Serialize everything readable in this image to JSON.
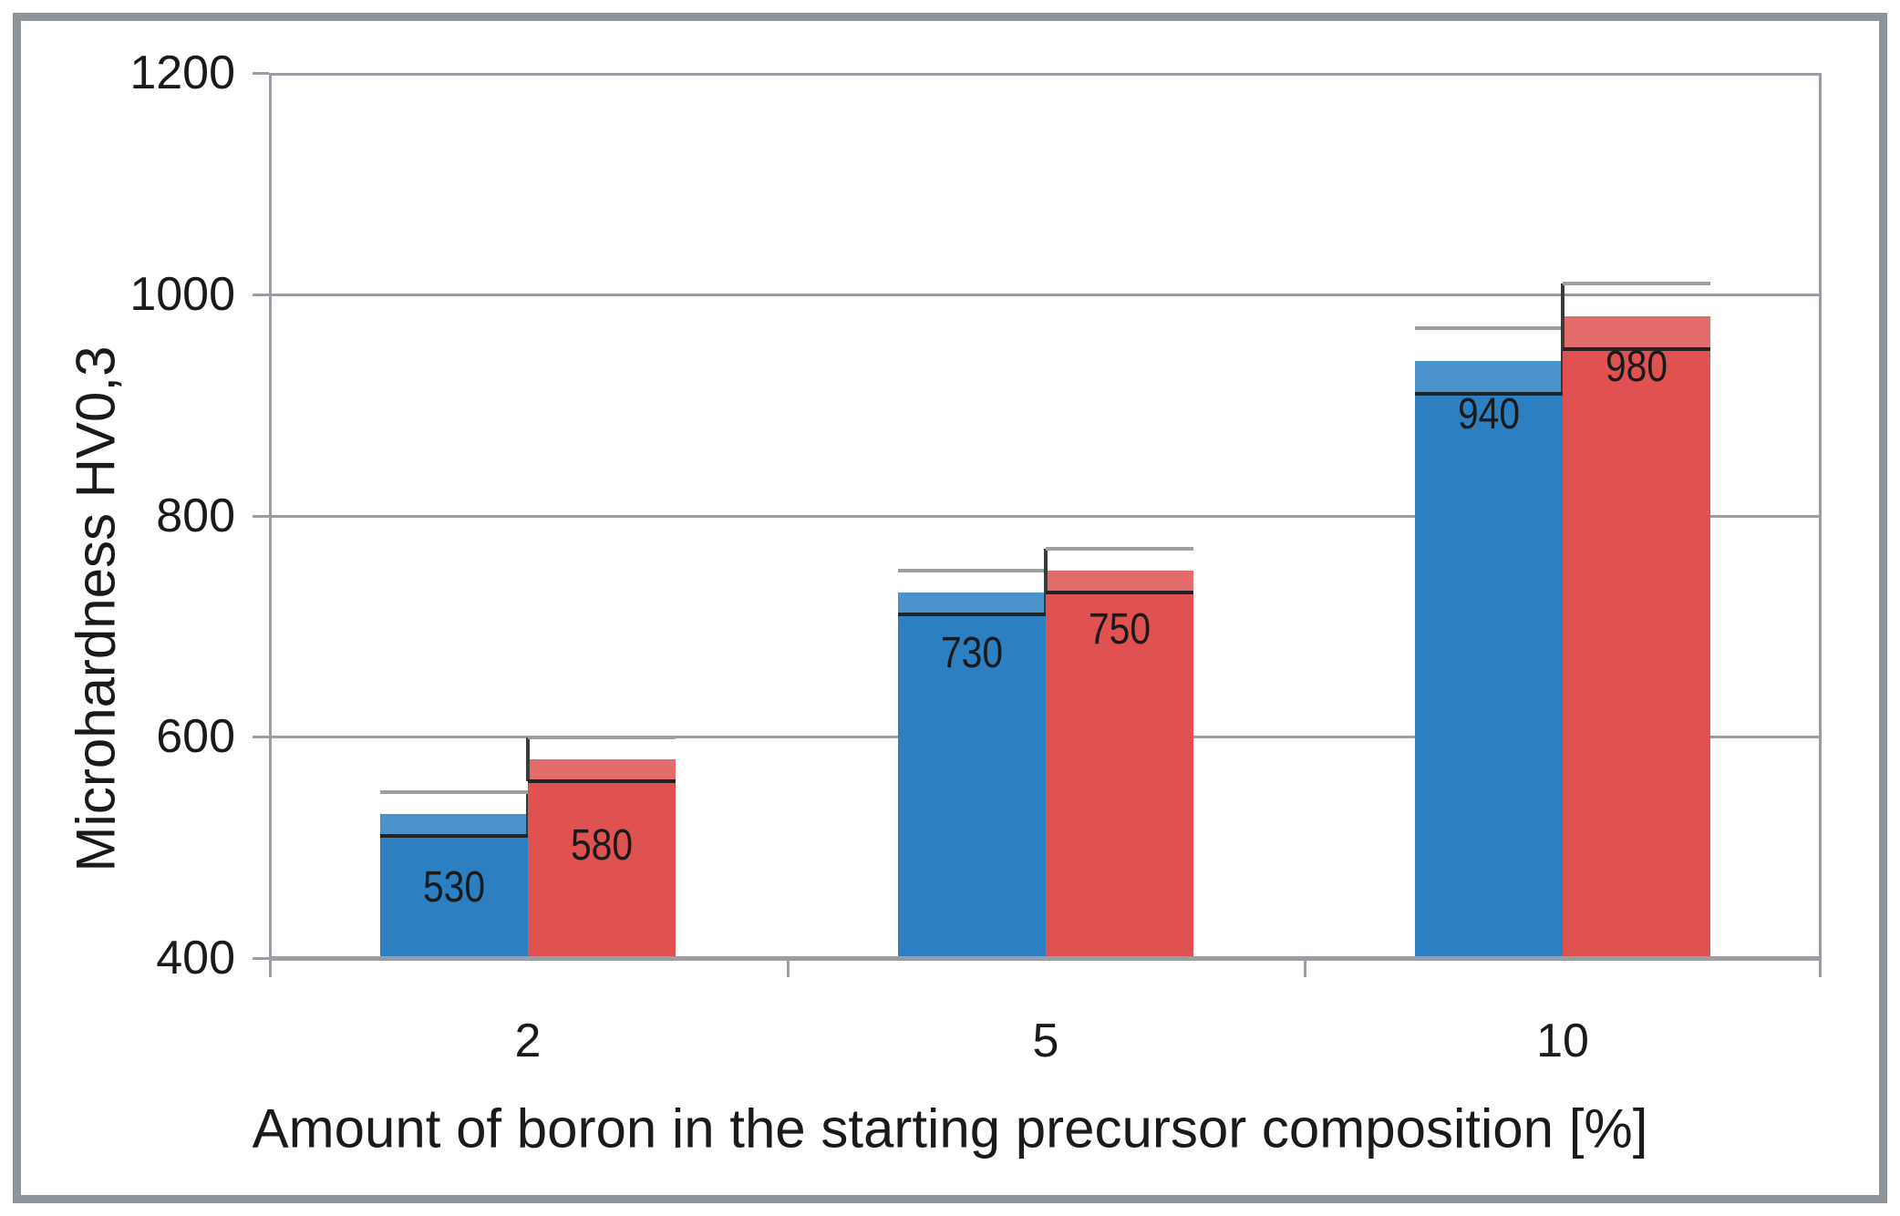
{
  "chart_data": {
    "type": "bar",
    "title": "",
    "xlabel": "Amount of boron in the starting precursor composition [%]",
    "ylabel": "Microhardness HV0,3",
    "categories": [
      "2",
      "5",
      "10"
    ],
    "series": [
      {
        "key": "series-1",
        "color": "#2C80C2",
        "values": [
          530,
          730,
          940
        ],
        "errors": [
          20,
          20,
          30
        ]
      },
      {
        "key": "series-2",
        "color": "#DF5251",
        "values": [
          580,
          750,
          980
        ],
        "errors": [
          20,
          20,
          30
        ]
      }
    ],
    "bar_labels": [
      [
        "530",
        "730",
        "940"
      ],
      [
        "580",
        "750",
        "980"
      ]
    ],
    "ylim": [
      400,
      1200
    ],
    "yticks": [
      "400",
      "600",
      "800",
      "1000",
      "1200"
    ],
    "ytick_values": [
      400,
      600,
      800,
      1000,
      1200
    ],
    "grid": true,
    "legend_position": "none",
    "colors": {
      "background": "#FFFFFF",
      "frame_border": "#8D949A",
      "grid_line": "#989EA3",
      "text": "#1A1A1A",
      "bar_blue": "#2C80C2",
      "bar_red": "#DF5251",
      "error_top_cap": "#9AA0A4",
      "error_line": "#3A3A3A",
      "error_bottom_cap": "#232323"
    }
  }
}
